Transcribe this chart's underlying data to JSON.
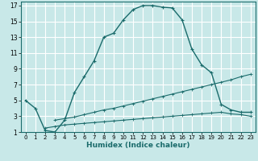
{
  "xlabel": "Humidex (Indice chaleur)",
  "bg_color": "#c8e8e8",
  "grid_color": "#ffffff",
  "line_color": "#1a6b6b",
  "xlim": [
    -0.5,
    23.5
  ],
  "ylim": [
    1,
    17.5
  ],
  "xticks": [
    0,
    1,
    2,
    3,
    4,
    5,
    6,
    7,
    8,
    9,
    10,
    11,
    12,
    13,
    14,
    15,
    16,
    17,
    18,
    19,
    20,
    21,
    22,
    23
  ],
  "yticks": [
    1,
    3,
    5,
    7,
    9,
    11,
    13,
    15,
    17
  ],
  "curve1_x": [
    0,
    1,
    2,
    3,
    4,
    5,
    6,
    7,
    8,
    9,
    10,
    11,
    12,
    13,
    14,
    15,
    16,
    17,
    18,
    19,
    20,
    21,
    22,
    23
  ],
  "curve1_y": [
    5,
    4,
    1.2,
    1.0,
    2.5,
    6.0,
    8.0,
    10.0,
    13.0,
    13.5,
    15.2,
    16.5,
    17.0,
    17.0,
    16.8,
    16.7,
    15.2,
    11.5,
    9.5,
    8.5,
    4.5,
    3.8,
    3.5,
    3.5
  ],
  "curve2_x": [
    3,
    4,
    5,
    6,
    7,
    8,
    9,
    10,
    11,
    12,
    13,
    14,
    15,
    16,
    17,
    18,
    19,
    20,
    21,
    22,
    23
  ],
  "curve2_y": [
    2.5,
    2.7,
    2.9,
    3.2,
    3.5,
    3.8,
    4.0,
    4.3,
    4.6,
    4.9,
    5.2,
    5.5,
    5.8,
    6.1,
    6.4,
    6.7,
    7.0,
    7.3,
    7.6,
    8.0,
    8.3
  ],
  "curve3_x": [
    2,
    3,
    4,
    5,
    6,
    7,
    8,
    9,
    10,
    11,
    12,
    13,
    14,
    15,
    16,
    17,
    18,
    19,
    20,
    21,
    22,
    23
  ],
  "curve3_y": [
    1.5,
    1.7,
    1.9,
    2.0,
    2.1,
    2.2,
    2.3,
    2.4,
    2.5,
    2.6,
    2.7,
    2.8,
    2.9,
    3.0,
    3.1,
    3.2,
    3.3,
    3.4,
    3.5,
    3.3,
    3.2,
    3.0
  ]
}
